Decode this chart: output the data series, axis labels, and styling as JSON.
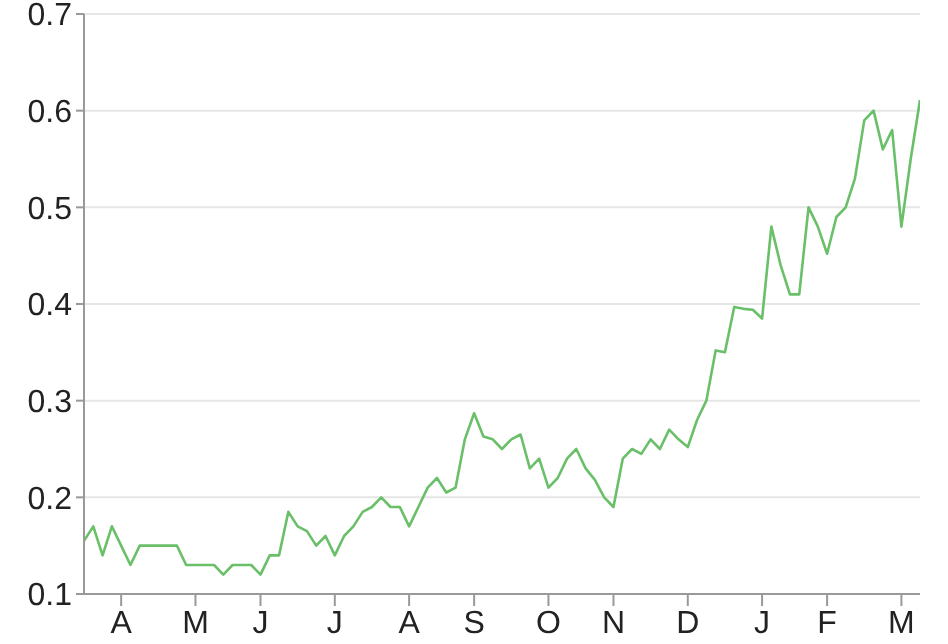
{
  "chart_data": {
    "type": "line",
    "categories": [
      null,
      null,
      null,
      null,
      "A",
      null,
      null,
      null,
      null,
      null,
      null,
      null,
      "M",
      null,
      null,
      null,
      null,
      null,
      null,
      "J",
      null,
      null,
      null,
      null,
      null,
      null,
      null,
      "J",
      null,
      null,
      null,
      null,
      null,
      null,
      null,
      "A",
      null,
      null,
      null,
      null,
      null,
      null,
      "S",
      null,
      null,
      null,
      null,
      null,
      null,
      null,
      "O",
      null,
      null,
      null,
      null,
      null,
      null,
      "N",
      null,
      null,
      null,
      null,
      null,
      null,
      null,
      "D",
      null,
      null,
      null,
      null,
      null,
      null,
      null,
      "J",
      null,
      null,
      null,
      null,
      null,
      null,
      "F",
      null,
      null,
      null,
      null,
      null,
      null,
      null,
      "M",
      null,
      null
    ],
    "series": [
      {
        "color": "#6abf69",
        "values": [
          0.155,
          0.17,
          0.14,
          0.17,
          0.15,
          0.13,
          0.15,
          0.15,
          0.15,
          0.15,
          0.15,
          0.13,
          0.13,
          0.13,
          0.13,
          0.12,
          0.13,
          0.13,
          0.13,
          0.12,
          0.14,
          0.14,
          0.185,
          0.17,
          0.165,
          0.15,
          0.16,
          0.14,
          0.16,
          0.17,
          0.185,
          0.19,
          0.2,
          0.19,
          0.19,
          0.17,
          0.19,
          0.21,
          0.22,
          0.205,
          0.21,
          0.26,
          0.287,
          0.263,
          0.26,
          0.25,
          0.26,
          0.265,
          0.23,
          0.24,
          0.21,
          0.22,
          0.24,
          0.25,
          0.23,
          0.218,
          0.2,
          0.19,
          0.24,
          0.25,
          0.245,
          0.26,
          0.25,
          0.27,
          0.26,
          0.252,
          0.28,
          0.3,
          0.352,
          0.35,
          0.397,
          0.395,
          0.394,
          0.385,
          0.48,
          0.44,
          0.41,
          0.41,
          0.5,
          0.48,
          0.452,
          0.49,
          0.5,
          0.53,
          0.59,
          0.6,
          0.56,
          0.58,
          0.48,
          0.55,
          0.611
        ]
      }
    ],
    "ylim": [
      0.1,
      0.7
    ],
    "yticks": [
      0.1,
      0.2,
      0.3,
      0.4,
      0.5,
      0.6,
      0.7
    ],
    "grid": "y"
  }
}
